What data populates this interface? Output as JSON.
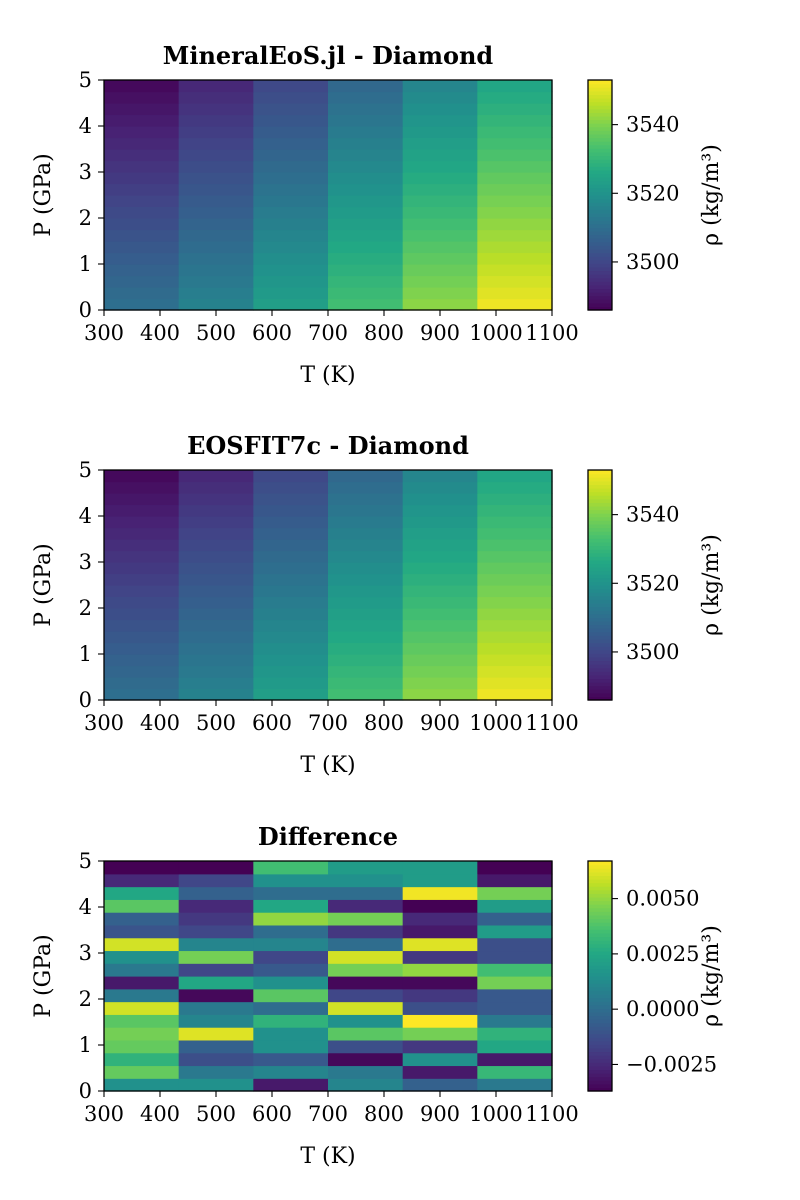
{
  "chart_data": [
    {
      "type": "heatmap",
      "title": "MineralEoS.jl - Diamond",
      "xlabel": "T (K)",
      "ylabel": "P (GPa)",
      "xlim": [
        300,
        1100
      ],
      "ylim": [
        0,
        5
      ],
      "x_ticks": [
        "300",
        "400",
        "500",
        "600",
        "700",
        "800",
        "900",
        "1000",
        "1100"
      ],
      "y_ticks": [
        "0",
        "1",
        "2",
        "3",
        "4",
        "5"
      ],
      "columns": 6,
      "rows": 20,
      "colorbar": {
        "label": "ρ (kg/m³)",
        "range": [
          3486,
          3553
        ],
        "ticks": [
          "3500",
          "3520",
          "3540"
        ],
        "colormap": "viridis"
      },
      "temperatures_K": [
        300,
        433.3,
        566.7,
        700,
        833.3,
        966.7,
        1100
      ],
      "density_at_0GPa": [
        3511,
        3516,
        3524,
        3533,
        3542,
        3552
      ],
      "density_at_5GPa": [
        3487,
        3493,
        3500,
        3508,
        3516,
        3525
      ]
    },
    {
      "type": "heatmap",
      "title": "EOSFIT7c - Diamond",
      "xlabel": "T (K)",
      "ylabel": "P (GPa)",
      "xlim": [
        300,
        1100
      ],
      "ylim": [
        0,
        5
      ],
      "x_ticks": [
        "300",
        "400",
        "500",
        "600",
        "700",
        "800",
        "900",
        "1000",
        "1100"
      ],
      "y_ticks": [
        "0",
        "1",
        "2",
        "3",
        "4",
        "5"
      ],
      "columns": 6,
      "rows": 20,
      "colorbar": {
        "label": "ρ (kg/m³)",
        "range": [
          3486,
          3553
        ],
        "ticks": [
          "3500",
          "3520",
          "3540"
        ],
        "colormap": "viridis"
      },
      "temperatures_K": [
        300,
        433.3,
        566.7,
        700,
        833.3,
        966.7,
        1100
      ],
      "density_at_0GPa": [
        3511,
        3516,
        3524,
        3533,
        3542,
        3552
      ],
      "density_at_5GPa": [
        3487,
        3493,
        3500,
        3508,
        3516,
        3525
      ]
    },
    {
      "type": "heatmap",
      "title": "Difference",
      "xlabel": "T (K)",
      "ylabel": "P (GPa)",
      "xlim": [
        300,
        1100
      ],
      "ylim": [
        0,
        5
      ],
      "x_ticks": [
        "300",
        "400",
        "500",
        "600",
        "700",
        "800",
        "900",
        "1000",
        "1100"
      ],
      "y_ticks": [
        "0",
        "1",
        "2",
        "3",
        "4",
        "5"
      ],
      "columns": 6,
      "rows": 18,
      "colorbar": {
        "label": "ρ (kg/m³)",
        "range": [
          -0.0037,
          0.0067
        ],
        "ticks": [
          "−0.0025",
          "0.0000",
          "0.0025",
          "0.0050"
        ],
        "colormap": "viridis"
      },
      "values_bottom_to_top": [
        [
          0.0015,
          0.0015,
          -0.003,
          0.001,
          -0.0005,
          0.0005
        ],
        [
          0.0042,
          0.0005,
          0.001,
          0.0005,
          -0.003,
          0.0032
        ],
        [
          0.003,
          -0.0012,
          -0.0008,
          -0.0035,
          0.0015,
          -0.003
        ],
        [
          0.0042,
          -0.0005,
          0.0015,
          -0.0012,
          -0.002,
          0.0025
        ],
        [
          0.0045,
          0.0062,
          0.0015,
          0.004,
          0.0045,
          0.003
        ],
        [
          0.004,
          0.001,
          0.003,
          0.0015,
          0.0067,
          0.0005
        ],
        [
          0.006,
          0.0005,
          0.0,
          0.006,
          -0.0012,
          -0.0008
        ],
        [
          0.0005,
          -0.0035,
          0.004,
          -0.0015,
          -0.002,
          -0.0008
        ],
        [
          -0.003,
          0.0025,
          0.0015,
          -0.0035,
          -0.0035,
          0.0045
        ],
        [
          0.0005,
          -0.0015,
          -0.0008,
          0.0045,
          0.005,
          0.0035
        ],
        [
          0.0015,
          0.0045,
          -0.0015,
          0.006,
          -0.002,
          -0.0012
        ],
        [
          0.006,
          0.001,
          0.001,
          0.0,
          0.0062,
          -0.0012
        ],
        [
          -0.001,
          -0.0015,
          0.0,
          -0.002,
          -0.003,
          0.002
        ],
        [
          -0.0005,
          -0.002,
          0.005,
          0.0045,
          -0.0025,
          -0.0005
        ],
        [
          0.004,
          -0.0025,
          0.0025,
          -0.0025,
          -0.0037,
          0.002
        ],
        [
          0.0025,
          -0.0005,
          0.0,
          0.0,
          0.0065,
          0.0045
        ],
        [
          -0.0025,
          -0.0015,
          0.0015,
          0.0015,
          0.002,
          -0.003
        ],
        [
          -0.0037,
          -0.0037,
          0.0035,
          0.002,
          0.002,
          -0.0037
        ]
      ]
    }
  ]
}
